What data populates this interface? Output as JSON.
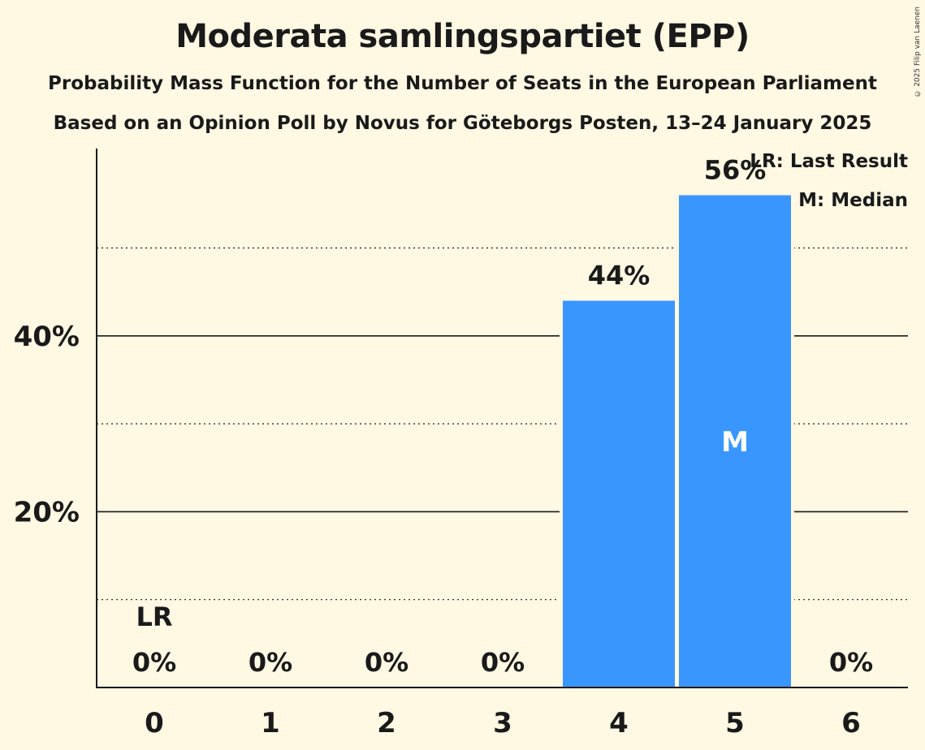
{
  "title": "Moderata samlingspartiet (EPP)",
  "subtitle_1": "Probability Mass Function for the Number of Seats in the European Parliament",
  "subtitle_2": "Based on an Opinion Poll by Novus for Göteborgs Posten, 13–24 January 2025",
  "copyright": "© 2025 Filip van Laenen",
  "legend": {
    "last_result": "LR: Last Result",
    "median": "M: Median"
  },
  "colors": {
    "bar": "#3A96FF",
    "background": "#FFF8E3",
    "text": "#1a1a1a"
  },
  "chart_data": {
    "type": "bar",
    "categories": [
      "0",
      "1",
      "2",
      "3",
      "4",
      "5",
      "6"
    ],
    "values": [
      0,
      0,
      0,
      0,
      44,
      56,
      0
    ],
    "value_labels": [
      "0%",
      "0%",
      "0%",
      "0%",
      "44%",
      "56%",
      "0%"
    ],
    "y_ticks": [
      {
        "value": 20,
        "label": "20%"
      },
      {
        "value": 40,
        "label": "40%"
      }
    ],
    "minor_gridlines": [
      10,
      30,
      50
    ],
    "ylim": [
      0,
      61.5
    ],
    "last_result_category": "0",
    "last_result_marker": "LR",
    "median_category": "5",
    "median_marker": "M",
    "legend_position": "top-right"
  }
}
